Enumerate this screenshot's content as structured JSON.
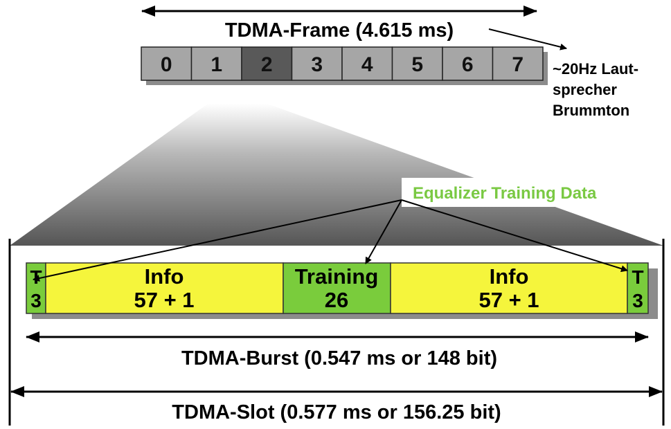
{
  "frame": {
    "label": "TDMA-Frame (4.615 ms)",
    "slots": [
      "0",
      "1",
      "2",
      "3",
      "4",
      "5",
      "6",
      "7"
    ],
    "highlighted_slot": "2"
  },
  "side_note": {
    "line1": "~20Hz Laut-",
    "line2": "sprecher",
    "line3": "Brummton"
  },
  "callout": {
    "label": "Equalizer Training Data",
    "color": "#7ac943"
  },
  "burst": {
    "tail_left": {
      "line1": "T",
      "line2": "3"
    },
    "info_left": {
      "line1": "Info",
      "line2": "57 + 1"
    },
    "training": {
      "line1": "Training",
      "line2": "26"
    },
    "info_right": {
      "line1": "Info",
      "line2": "57 + 1"
    },
    "tail_right": {
      "line1": "T",
      "line2": "3"
    },
    "label": "TDMA-Burst (0.547 ms or 148 bit)"
  },
  "slot": {
    "label": "TDMA-Slot (0.577 ms or 156.25 bit)"
  },
  "colors": {
    "slot_fill": "#a6a6a6",
    "highlight_fill": "#595959",
    "green": "#7acc3c",
    "yellow": "#f5f53c"
  }
}
